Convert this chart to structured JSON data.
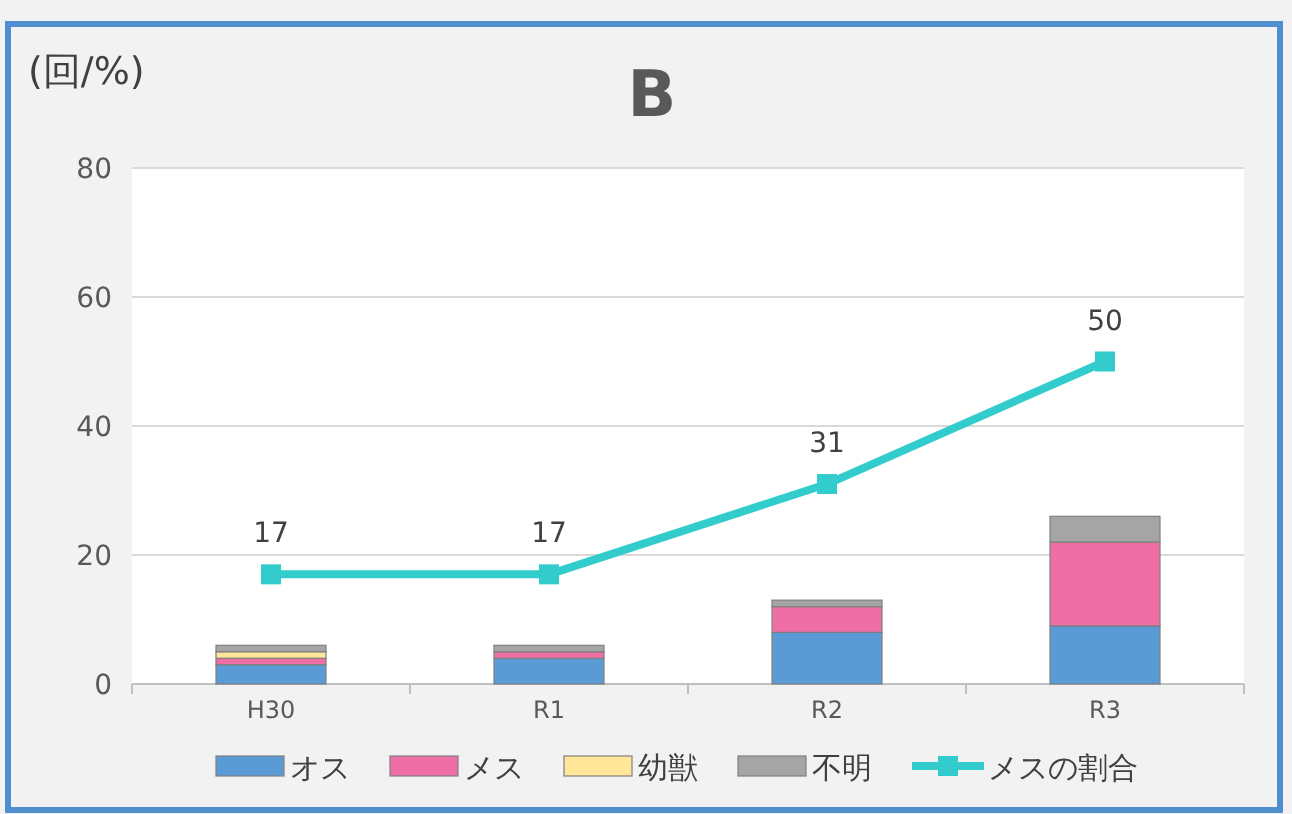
{
  "chart_data": {
    "type": "bar",
    "title": "B",
    "ylabel": "(回/%)",
    "categories": [
      "H30",
      "R1",
      "R2",
      "R3"
    ],
    "stacked": true,
    "series": [
      {
        "name": "オス",
        "color": "#5b9bd5",
        "values": [
          3,
          4,
          8,
          9
        ]
      },
      {
        "name": "メス",
        "color": "#f06ea6",
        "values": [
          1,
          1,
          4,
          13
        ]
      },
      {
        "name": "幼獣",
        "color": "#ffe699",
        "values": [
          1,
          0,
          0,
          0
        ]
      },
      {
        "name": "不明",
        "color": "#a5a5a5",
        "values": [
          1,
          1,
          1,
          4
        ]
      },
      {
        "name": "メスの割合",
        "type": "line",
        "color": "#33cccc",
        "values": [
          17,
          17,
          31,
          50
        ],
        "value_labels": [
          "17",
          "17",
          "31",
          "50"
        ],
        "marker": "square"
      }
    ],
    "ylim": [
      0,
      80
    ],
    "yticks": [
      0,
      20,
      40,
      60,
      80
    ],
    "grid": "y",
    "legend": "bottom"
  }
}
